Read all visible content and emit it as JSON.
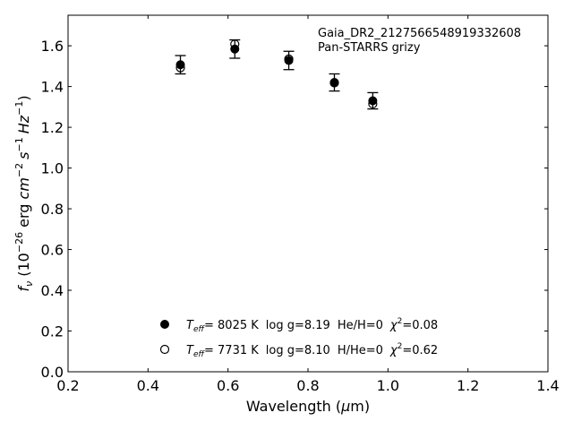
{
  "chart_data": {
    "type": "scatter",
    "annotation_lines": [
      "Gaia_DR2_2127566548919332608",
      "Pan-STARRS grizy"
    ],
    "xlabel_text": "Wavelength (",
    "xlabel_mu": "μ",
    "xlabel_tail": "m)",
    "ylabel": {
      "f": "f",
      "nu": "ν",
      "open": " (10",
      "exp26": "−26",
      "erg": " erg ",
      "cm": "cm",
      "expm2": "−2",
      "s": "s",
      "expm1": "−1",
      "hz": "Hz",
      "close": ")"
    },
    "xlim": [
      0.2,
      1.4
    ],
    "ylim": [
      0.0,
      1.75
    ],
    "xticks": [
      "0.2",
      "0.4",
      "0.6",
      "0.8",
      "1.0",
      "1.2",
      "1.4"
    ],
    "yticks": [
      "0.0",
      "0.2",
      "0.4",
      "0.6",
      "0.8",
      "1.0",
      "1.2",
      "1.4",
      "1.6"
    ],
    "grid": false,
    "legend_position": "bottom-center",
    "series": [
      {
        "marker": "filled-circle",
        "x": [
          0.481,
          0.617,
          0.752,
          0.866,
          0.962
        ],
        "y": [
          1.507,
          1.584,
          1.528,
          1.42,
          1.33
        ],
        "legend": {
          "teff_T": "T",
          "teff_sub": "eff",
          "teff_val": "=  8025 K",
          "logg": "log g=8.19",
          "comp": "He/H=0",
          "chi": "χ",
          "chi_exp": "2",
          "chi_val": "=0.08"
        }
      },
      {
        "marker": "open-circle",
        "x": [
          0.481,
          0.617,
          0.752,
          0.866,
          0.962
        ],
        "y": [
          1.492,
          1.608,
          1.535,
          1.418,
          1.315
        ],
        "legend": {
          "teff_T": "T",
          "teff_sub": "eff",
          "teff_val": "=  7731 K",
          "logg": "log g=8.10",
          "comp": "H/He=0",
          "chi": "χ",
          "chi_exp": "2",
          "chi_val": "=0.62"
        }
      }
    ],
    "observed_errors": [
      0.045,
      0.045,
      0.045,
      0.042,
      0.04
    ],
    "colors": {
      "marker": "#000000",
      "background": "#ffffff"
    }
  }
}
